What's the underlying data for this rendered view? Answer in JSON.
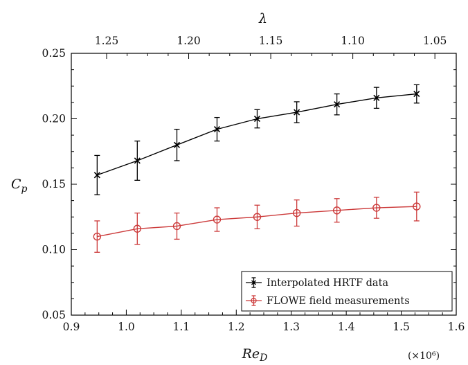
{
  "chart_data": {
    "type": "line",
    "title": "",
    "xlabel": "Re_D",
    "xlabel_main": "Re",
    "xlabel_sub": "D",
    "ylabel": "C_p",
    "ylabel_main": "C",
    "ylabel_sub": "p",
    "top_xlabel": "λ",
    "x_multiplier_label": "(×10⁶)",
    "xlim": [
      0.9,
      1.6
    ],
    "ylim": [
      0.05,
      0.25
    ],
    "xticks": [
      "0.9",
      "1.0",
      "1.1",
      "1.2",
      "1.3",
      "1.4",
      "1.5",
      "1.6"
    ],
    "yticks": [
      "0.05",
      "0.10",
      "0.15",
      "0.20",
      "0.25"
    ],
    "top_xlim": [
      1.2715,
      1.037
    ],
    "top_xticks": [
      "1.25",
      "1.20",
      "1.15",
      "1.10",
      "1.05"
    ],
    "grid": false,
    "legend_position": "bottom-right",
    "series": [
      {
        "name": "Interpolated HRTF data",
        "color": "#000000",
        "marker": "x",
        "x": [
          0.947,
          1.02,
          1.092,
          1.165,
          1.238,
          1.31,
          1.383,
          1.455,
          1.528
        ],
        "y": [
          0.157,
          0.168,
          0.18,
          0.192,
          0.2,
          0.205,
          0.211,
          0.216,
          0.219
        ],
        "err": [
          0.015,
          0.015,
          0.012,
          0.009,
          0.007,
          0.008,
          0.008,
          0.008,
          0.007
        ]
      },
      {
        "name": "FLOWE field measurements",
        "color": "#cc3a3a",
        "marker": "circle",
        "x": [
          0.947,
          1.02,
          1.092,
          1.165,
          1.238,
          1.31,
          1.383,
          1.455,
          1.528
        ],
        "y": [
          0.11,
          0.116,
          0.118,
          0.123,
          0.125,
          0.128,
          0.13,
          0.132,
          0.133
        ],
        "err": [
          0.012,
          0.012,
          0.01,
          0.009,
          0.009,
          0.01,
          0.009,
          0.008,
          0.011
        ]
      }
    ]
  }
}
